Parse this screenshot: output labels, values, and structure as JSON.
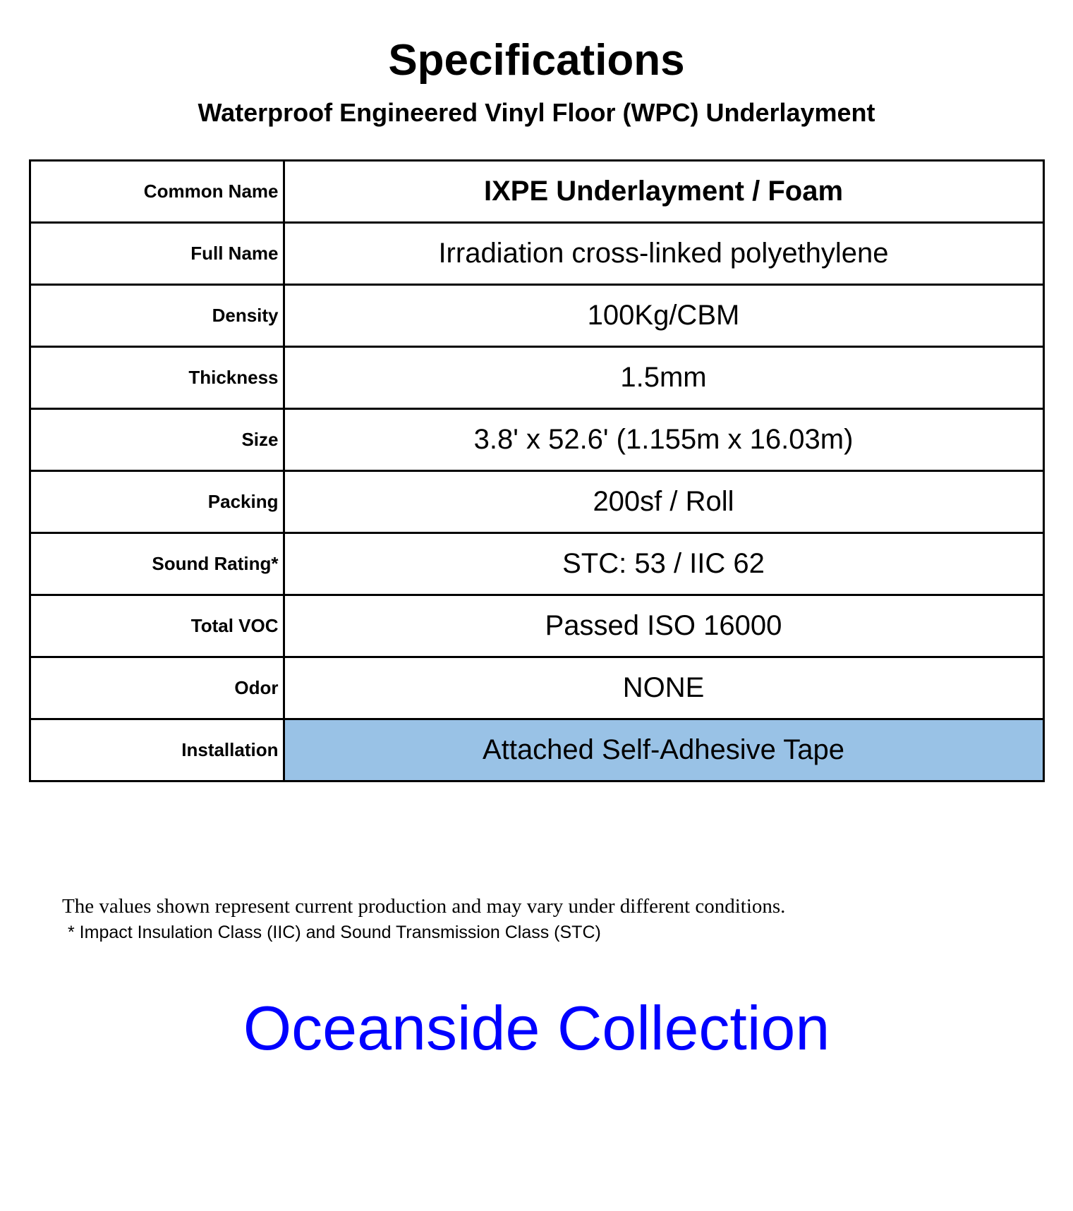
{
  "header": {
    "title": "Specifications",
    "subtitle": "Waterproof Engineered Vinyl Floor (WPC) Underlayment"
  },
  "table": {
    "rows": [
      {
        "label": "Common Name",
        "value": "IXPE Underlayment / Foam",
        "bold": true,
        "highlight": false
      },
      {
        "label": "Full Name",
        "value": "Irradiation cross-linked polyethylene",
        "bold": false,
        "highlight": false
      },
      {
        "label": "Density",
        "value": "100Kg/CBM",
        "bold": false,
        "highlight": false
      },
      {
        "label": "Thickness",
        "value": "1.5mm",
        "bold": false,
        "highlight": false
      },
      {
        "label": "Size",
        "value": "3.8' x 52.6' (1.155m x 16.03m)",
        "bold": false,
        "highlight": false
      },
      {
        "label": "Packing",
        "value": "200sf / Roll",
        "bold": false,
        "highlight": false
      },
      {
        "label": "Sound Rating*",
        "value": "STC: 53 / IIC 62",
        "bold": false,
        "highlight": false
      },
      {
        "label": "Total VOC",
        "value": "Passed ISO 16000",
        "bold": false,
        "highlight": false
      },
      {
        "label": "Odor",
        "value": "NONE",
        "bold": false,
        "highlight": false
      },
      {
        "label": "Installation",
        "value": "Attached Self-Adhesive Tape",
        "bold": false,
        "highlight": true
      }
    ],
    "highlight_color": "#99c2e6",
    "border_color": "#000000"
  },
  "footnotes": {
    "line1": "The values shown represent current production and may vary under different conditions.",
    "line2": "* Impact Insulation Class (IIC) and Sound Transmission Class (STC)"
  },
  "collection": {
    "text": "Oceanside Collection",
    "color": "#0000ff"
  }
}
